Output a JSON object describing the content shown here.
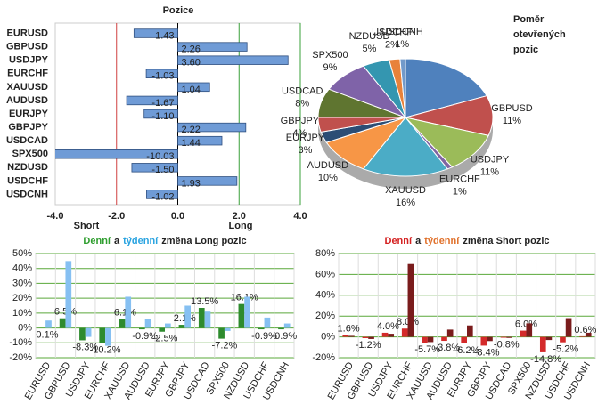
{
  "chart_data": [
    {
      "type": "hbar",
      "title": "Pozice",
      "categories": [
        "EURUSD",
        "GBPUSD",
        "USDJPY",
        "EURCHF",
        "XAUUSD",
        "AUDUSD",
        "EURJPY",
        "GBPJPY",
        "USDCAD",
        "SPX500",
        "NZDUSD",
        "USDCHF",
        "USDCNH"
      ],
      "values": [
        -1.43,
        2.26,
        3.6,
        -1.03,
        1.04,
        -1.67,
        -1.1,
        2.22,
        1.44,
        -10.03,
        -1.5,
        1.93,
        -1.02
      ],
      "value_labels": [
        "-1.43",
        "2.26",
        "3.60",
        "-1.03",
        "1.04",
        "-1.67",
        "-1.10",
        "2.22",
        "1.44",
        "-10.03",
        "-1.50",
        "1.93",
        "-1.02"
      ],
      "color": "#6f9bd6",
      "xlim": [
        -4,
        4
      ],
      "xticks": [
        {
          "value": -4,
          "label": "-4.0"
        },
        {
          "value": -2,
          "label": "-2.0"
        },
        {
          "value": 0,
          "label": "0.0"
        },
        {
          "value": 2,
          "label": "2.0"
        },
        {
          "value": 4,
          "label": "4.0"
        }
      ],
      "grid_colors": [
        "none",
        "#d04040",
        "#000000",
        "#3aa03a",
        "#3aa03a"
      ],
      "annotations": [
        "Short",
        "Long"
      ]
    },
    {
      "type": "pie",
      "title_lines": [
        "Poměr",
        "otevřených",
        "pozic"
      ],
      "categories": [
        null,
        "GBPUSD",
        "USDJPY",
        "EURCHF",
        "XAUUSD",
        "AUDUSD",
        "EURJPY",
        "GBPJPY",
        "USDCAD",
        "SPX500",
        "NZDUSD",
        "USDCHF",
        "USDCNH"
      ],
      "values": [
        19,
        11,
        11,
        1,
        16,
        10,
        3,
        4,
        8,
        9,
        5,
        2,
        1
      ],
      "value_labels": [
        null,
        "11%",
        "11%",
        "1%",
        "16%",
        "10%",
        "3%",
        "4%",
        "8%",
        "9%",
        "5%",
        "2%",
        "1%"
      ],
      "colors": [
        "#4f81bd",
        "#c0504d",
        "#9bbb59",
        "#8064a2",
        "#4bacc6",
        "#f79646",
        "#2c4d75",
        "#c0504d",
        "#5f7530",
        "#7f63a8",
        "#3496b0",
        "#e8823a",
        "#729aca"
      ]
    },
    {
      "type": "grouped_bar",
      "title_parts": [
        {
          "text": "Denní",
          "color": "#2e9e2e"
        },
        {
          "text": "a",
          "color": "#222222"
        },
        {
          "text": "týdenní",
          "color": "#29a3e0"
        },
        {
          "text": "změna Long pozic",
          "color": "#222222"
        }
      ],
      "categories": [
        "EURUSD",
        "GBPUSD",
        "USDJPY",
        "EURCHF",
        "XAUUSD",
        "AUDUSD",
        "EURJPY",
        "GBPJPY",
        "USDCAD",
        "SPX500",
        "NZDUSD",
        "USDCHF",
        "USDCNH"
      ],
      "series": [
        {
          "color": "#2e8b2e",
          "values": [
            -0.1,
            6.5,
            -8.3,
            -10.2,
            6.1,
            -0.9,
            -2.5,
            2.1,
            13.5,
            -7.2,
            16.1,
            -0.9,
            -0.9
          ],
          "value_labels": [
            "-0.1%",
            "6.5%",
            "-8.3%",
            "-10.2%",
            "6.1%",
            "-0.9%",
            "-2.5%",
            "2.1%",
            "13.5%",
            "-7.2%",
            "16.1%",
            "-0.9%",
            "-0.9%"
          ]
        },
        {
          "color": "#86c0f2",
          "values": [
            5,
            45,
            -6,
            -12,
            21,
            6,
            3,
            15,
            11,
            -2,
            21,
            7,
            3
          ]
        }
      ],
      "ylim": [
        -20,
        50
      ],
      "yticks": [
        {
          "value": -20,
          "label": "-20%"
        },
        {
          "value": -10,
          "label": "-10%"
        },
        {
          "value": 0,
          "label": "0%"
        },
        {
          "value": 10,
          "label": "10%"
        },
        {
          "value": 20,
          "label": "20%"
        },
        {
          "value": 30,
          "label": "30%"
        },
        {
          "value": 40,
          "label": "40%"
        },
        {
          "value": 50,
          "label": "50%"
        }
      ],
      "grid": true
    },
    {
      "type": "grouped_bar",
      "title_parts": [
        {
          "text": "Denní",
          "color": "#d42020"
        },
        {
          "text": "a",
          "color": "#222222"
        },
        {
          "text": "týdenní",
          "color": "#e0702a"
        },
        {
          "text": "změna Short pozic",
          "color": "#222222"
        }
      ],
      "categories": [
        "EURUSD",
        "GBPUSD",
        "USDJPY",
        "EURCHF",
        "XAUUSD",
        "AUDUSD",
        "EURJPY",
        "GBPJPY",
        "USDCAD",
        "SPX500",
        "NZDUSD",
        "USDCHF",
        "USDCNH"
      ],
      "series": [
        {
          "color": "#d42a2a",
          "values": [
            1.6,
            -1.2,
            4.0,
            8.0,
            -5.7,
            -3.8,
            -6.2,
            -8.4,
            -0.8,
            6.0,
            -14.8,
            -5.2,
            0.6
          ],
          "value_labels": [
            "1.6%",
            "-1.2%",
            "4.0%",
            "8.0%",
            "-5.7%",
            "-3.8%",
            "-6.2%",
            "-8.4%",
            "-0.8%",
            "6.0%",
            "-14.8%",
            "-5.2%",
            "0.6%"
          ]
        },
        {
          "color": "#7a1c1c",
          "values": [
            1,
            -2,
            3,
            70,
            -5,
            7,
            11,
            -4,
            -1,
            13,
            -3,
            18,
            4
          ]
        }
      ],
      "ylim": [
        -20,
        80
      ],
      "yticks": [
        {
          "value": -20,
          "label": "-20%"
        },
        {
          "value": 0,
          "label": "0%"
        },
        {
          "value": 20,
          "label": "20%"
        },
        {
          "value": 40,
          "label": "40%"
        },
        {
          "value": 60,
          "label": "60%"
        },
        {
          "value": 80,
          "label": "80%"
        }
      ],
      "grid": true
    }
  ]
}
